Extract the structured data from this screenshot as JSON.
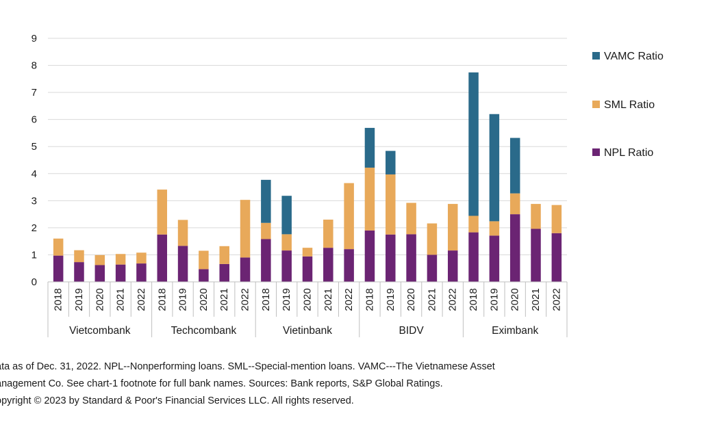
{
  "chart_data": {
    "type": "bar",
    "stacked": true,
    "title": "",
    "xlabel": "",
    "ylabel": "",
    "ylim": [
      0,
      9
    ],
    "yticks": [
      0,
      1,
      2,
      3,
      4,
      5,
      6,
      7,
      8,
      9
    ],
    "grid": true,
    "legend_position": "right",
    "groups": [
      {
        "name": "Vietcombank",
        "years": [
          "2018",
          "2019",
          "2020",
          "2021",
          "2022"
        ]
      },
      {
        "name": "Techcombank",
        "years": [
          "2018",
          "2019",
          "2020",
          "2021",
          "2022"
        ]
      },
      {
        "name": "Vietinbank",
        "years": [
          "2018",
          "2019",
          "2020",
          "2021",
          "2022"
        ]
      },
      {
        "name": "BIDV",
        "years": [
          "2018",
          "2019",
          "2020",
          "2021",
          "2022"
        ]
      },
      {
        "name": "Eximbank",
        "years": [
          "2018",
          "2019",
          "2020",
          "2021",
          "2022"
        ]
      }
    ],
    "series": [
      {
        "name": "NPL Ratio",
        "color": "#6b2473",
        "values": [
          0.97,
          0.73,
          0.62,
          0.64,
          0.68,
          1.75,
          1.33,
          0.47,
          0.66,
          0.9,
          1.58,
          1.16,
          0.94,
          1.26,
          1.21,
          1.9,
          1.75,
          1.76,
          1.0,
          1.16,
          1.83,
          1.71,
          2.5,
          1.96,
          1.8
        ]
      },
      {
        "name": "SML Ratio",
        "color": "#e8a95a",
        "values": [
          0.63,
          0.44,
          0.37,
          0.39,
          0.4,
          1.66,
          0.96,
          0.68,
          0.66,
          2.13,
          0.6,
          0.6,
          0.32,
          1.04,
          2.44,
          2.32,
          2.22,
          1.16,
          1.16,
          1.72,
          0.61,
          0.53,
          0.77,
          0.92,
          1.04
        ]
      },
      {
        "name": "VAMC Ratio",
        "color": "#2a6a8a",
        "values": [
          0,
          0,
          0,
          0,
          0,
          0,
          0,
          0,
          0,
          0,
          1.59,
          1.42,
          0,
          0,
          0,
          1.47,
          0.87,
          0,
          0,
          0,
          5.3,
          3.96,
          2.05,
          0,
          0
        ]
      }
    ],
    "legend": [
      "VAMC Ratio",
      "SML Ratio",
      "NPL Ratio"
    ]
  },
  "footnote": {
    "line1": "ata as of Dec. 31, 2022. NPL--Nonperforming loans. SML--Special-mention loans. VAMC---The Vietnamese Asset",
    "line2": "anagement Co. See chart-1 footnote for full bank names. Sources: Bank reports, S&P Global Ratings.",
    "line3": "opyright © 2023 by Standard & Poor's Financial Services LLC. All rights reserved."
  }
}
